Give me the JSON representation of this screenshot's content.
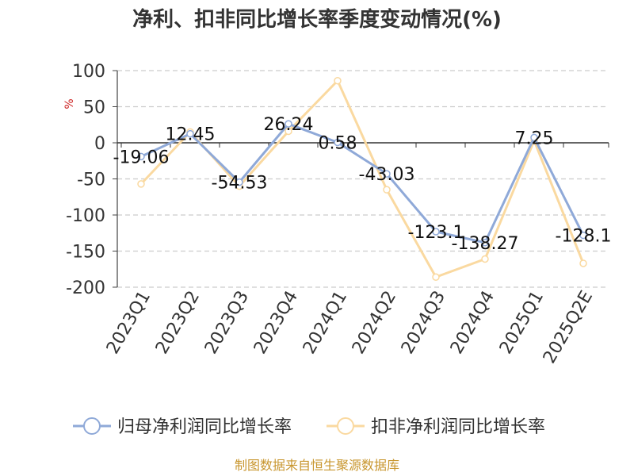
{
  "source": "制图数据来自恒生聚源数据库",
  "chart_data": {
    "type": "line",
    "title": "净利、扣非同比增长率季度变动情况(%)",
    "ylabel": "%",
    "xlabel": "",
    "categories": [
      "2023Q1",
      "2023Q2",
      "2023Q3",
      "2023Q4",
      "2024Q1",
      "2024Q2",
      "2024Q3",
      "2024Q4",
      "2025Q1",
      "2025Q2E"
    ],
    "ylim": [
      -200,
      100
    ],
    "yticks": [
      100,
      50,
      0,
      -50,
      -100,
      -150,
      -200
    ],
    "grid": true,
    "legend_position": "bottom",
    "series": [
      {
        "name": "归母净利润同比增长率",
        "color": "#8fa9d8",
        "values": [
          -19.06,
          12.45,
          -54.53,
          26.24,
          0.58,
          -43.03,
          -123.1,
          -138.27,
          7.25,
          -128.1
        ],
        "labels": [
          "-19.06",
          "12.45",
          "-54.53",
          "26.24",
          "0.58",
          "-43.03",
          "-123.1",
          "-138.27",
          "7.25",
          "-128.1"
        ]
      },
      {
        "name": "扣非净利润同比增长率",
        "color": "#fad9a0",
        "values": [
          -57,
          15,
          -60,
          16,
          86,
          -65,
          -186,
          -161,
          3,
          -167
        ]
      }
    ]
  }
}
